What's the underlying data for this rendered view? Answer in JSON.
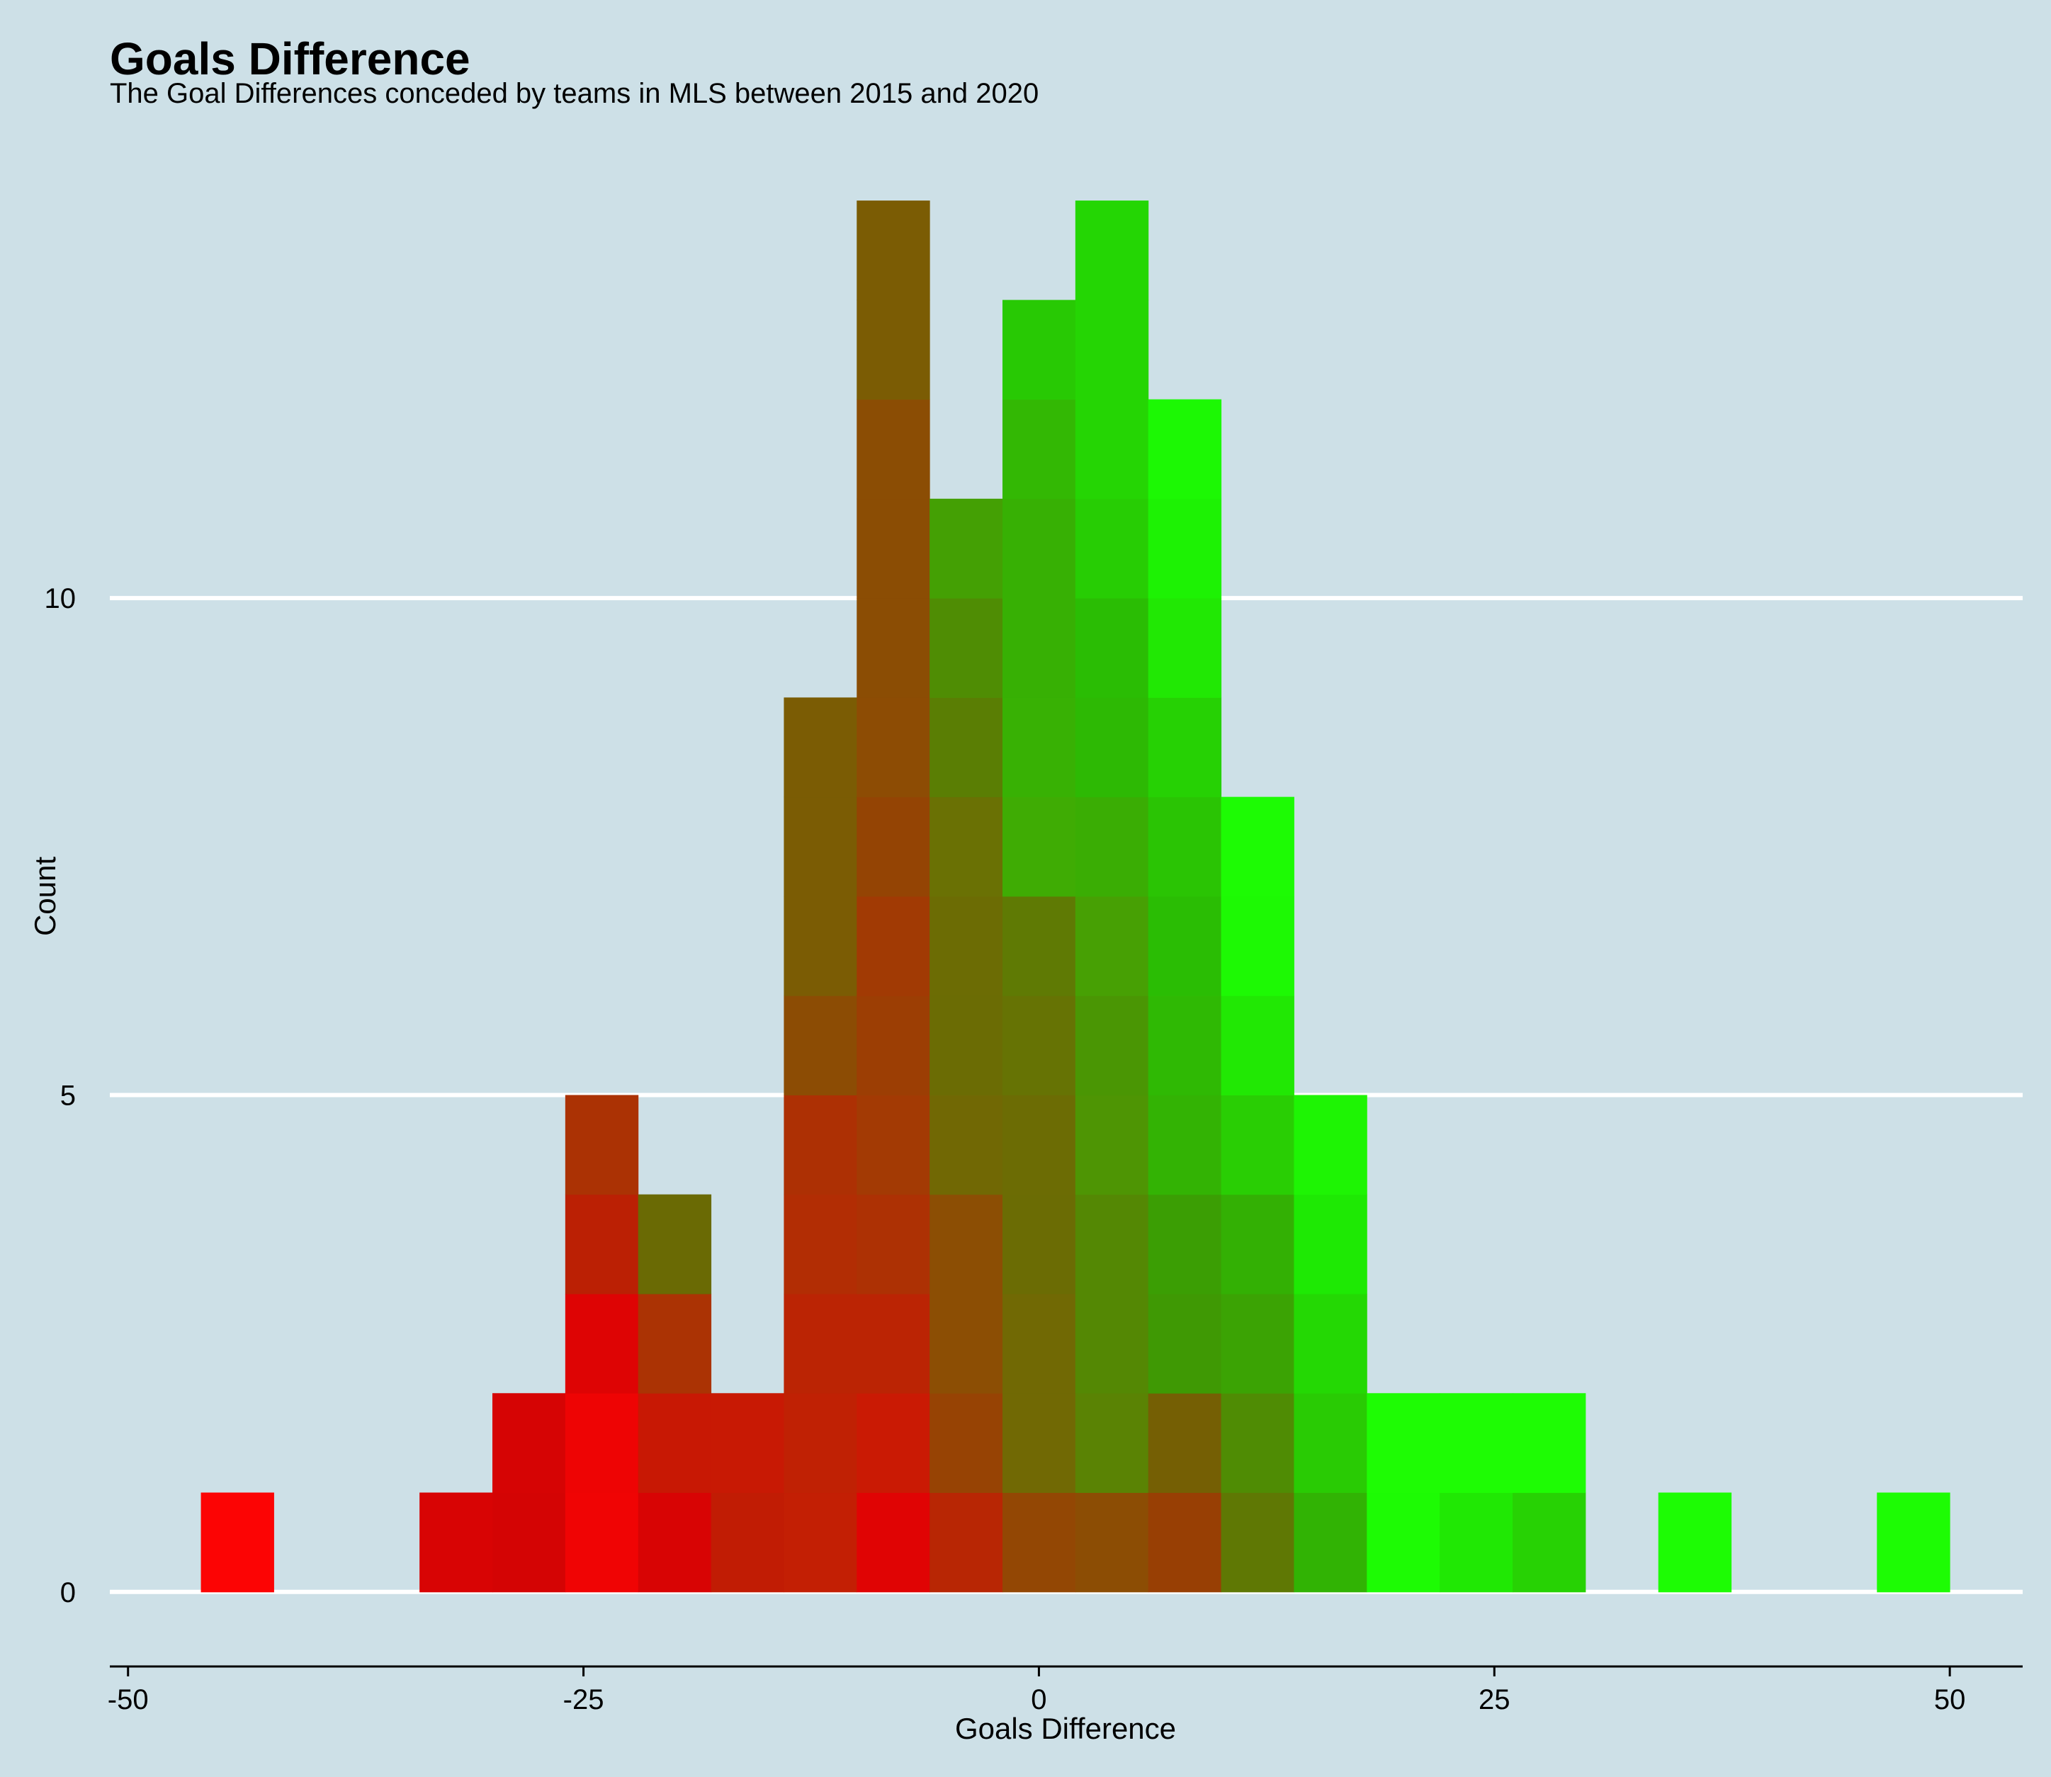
{
  "chart_data": {
    "type": "bar",
    "title": "Goals Difference",
    "subtitle": "The Goal Differences conceded by teams in MLS between 2015 and 2020",
    "xlabel": "Goals Difference",
    "ylabel": "Count",
    "xlim": [
      -51,
      54
    ],
    "ylim": [
      -0.7,
      14.2
    ],
    "x_ticks": [
      -50,
      -25,
      0,
      25,
      50
    ],
    "x_tick_labels": [
      "-50",
      "-25",
      "0",
      "25",
      "50"
    ],
    "y_ticks": [
      0,
      5,
      10
    ],
    "y_tick_labels": [
      "0",
      "5",
      "10"
    ],
    "grid": "horizontal",
    "legend": "none",
    "bin_width": 4,
    "stacked": true,
    "bins": [
      {
        "x0": -46,
        "x1": -42,
        "segments": [
          {
            "count": 1,
            "color": "#fc0404"
          }
        ]
      },
      {
        "x0": -34,
        "x1": -30,
        "segments": [
          {
            "count": 1,
            "color": "#d80404"
          }
        ]
      },
      {
        "x0": -30,
        "x1": -26,
        "segments": [
          {
            "count": 1,
            "color": "#d40404"
          },
          {
            "count": 1,
            "color": "#d60404"
          }
        ]
      },
      {
        "x0": -26,
        "x1": -22,
        "segments": [
          {
            "count": 1,
            "color": "#f00404"
          },
          {
            "count": 1,
            "color": "#ee0404"
          },
          {
            "count": 1,
            "color": "#de0404"
          },
          {
            "count": 1,
            "color": "#bb2004"
          },
          {
            "count": 1,
            "color": "#ab3204"
          }
        ]
      },
      {
        "x0": -22,
        "x1": -18,
        "segments": [
          {
            "count": 1,
            "color": "#d80404"
          },
          {
            "count": 1,
            "color": "#c81804"
          },
          {
            "count": 1,
            "color": "#ab3304"
          },
          {
            "count": 1,
            "color": "#6a6a04"
          }
        ]
      },
      {
        "x0": -18,
        "x1": -14,
        "segments": [
          {
            "count": 1,
            "color": "#c11c04"
          },
          {
            "count": 1,
            "color": "#c81904"
          }
        ]
      },
      {
        "x0": -14,
        "x1": -10,
        "segments": [
          {
            "count": 1,
            "color": "#c31f04"
          },
          {
            "count": 1,
            "color": "#c02104"
          },
          {
            "count": 1,
            "color": "#bb2404"
          },
          {
            "count": 1,
            "color": "#b22d04"
          },
          {
            "count": 1,
            "color": "#ad3004"
          },
          {
            "count": 1,
            "color": "#8c4c04"
          },
          {
            "count": 1,
            "color": "#7b5c04"
          },
          {
            "count": 1,
            "color": "#7b5c04"
          },
          {
            "count": 1,
            "color": "#7b5c04"
          }
        ]
      },
      {
        "x0": -10,
        "x1": -6,
        "segments": [
          {
            "count": 1,
            "color": "#e00404"
          },
          {
            "count": 1,
            "color": "#ca1a04"
          },
          {
            "count": 1,
            "color": "#bb2404"
          },
          {
            "count": 1,
            "color": "#ad3104"
          },
          {
            "count": 1,
            "color": "#a33a04"
          },
          {
            "count": 1,
            "color": "#9c3e04"
          },
          {
            "count": 1,
            "color": "#a13a04"
          },
          {
            "count": 1,
            "color": "#944404"
          },
          {
            "count": 1,
            "color": "#8d4c04"
          },
          {
            "count": 1,
            "color": "#8b4d04"
          },
          {
            "count": 1,
            "color": "#8b4d04"
          },
          {
            "count": 1,
            "color": "#8b4d04"
          },
          {
            "count": 1,
            "color": "#7b5c04"
          },
          {
            "count": 1,
            "color": "#7b5c04"
          }
        ]
      },
      {
        "x0": -6,
        "x1": -2,
        "segments": [
          {
            "count": 1,
            "color": "#b82604"
          },
          {
            "count": 1,
            "color": "#974304"
          },
          {
            "count": 1,
            "color": "#8c4e04"
          },
          {
            "count": 1,
            "color": "#8c4e04"
          },
          {
            "count": 1,
            "color": "#716804"
          },
          {
            "count": 1,
            "color": "#6b6c04"
          },
          {
            "count": 1,
            "color": "#6c6c04"
          },
          {
            "count": 1,
            "color": "#6a7104"
          },
          {
            "count": 1,
            "color": "#5a7e04"
          },
          {
            "count": 1,
            "color": "#4f8d04"
          },
          {
            "count": 1,
            "color": "#44a004"
          }
        ]
      },
      {
        "x0": -2,
        "x1": 2,
        "segments": [
          {
            "count": 1,
            "color": "#934704"
          },
          {
            "count": 1,
            "color": "#716904"
          },
          {
            "count": 1,
            "color": "#716904"
          },
          {
            "count": 1,
            "color": "#6b6c04"
          },
          {
            "count": 1,
            "color": "#6c6c04"
          },
          {
            "count": 1,
            "color": "#667304"
          },
          {
            "count": 1,
            "color": "#5f7a04"
          },
          {
            "count": 1,
            "color": "#3fac04"
          },
          {
            "count": 1,
            "color": "#38b104"
          },
          {
            "count": 1,
            "color": "#37b004"
          },
          {
            "count": 1,
            "color": "#37b004"
          },
          {
            "count": 1,
            "color": "#33b804"
          },
          {
            "count": 1,
            "color": "#28c904"
          }
        ]
      },
      {
        "x0": 2,
        "x1": 6,
        "segments": [
          {
            "count": 1,
            "color": "#8c4d04"
          },
          {
            "count": 1,
            "color": "#5a8304"
          },
          {
            "count": 1,
            "color": "#548804"
          },
          {
            "count": 1,
            "color": "#548804"
          },
          {
            "count": 1,
            "color": "#4e9504"
          },
          {
            "count": 1,
            "color": "#4a9604"
          },
          {
            "count": 1,
            "color": "#47a004"
          },
          {
            "count": 1,
            "color": "#3aad04"
          },
          {
            "count": 1,
            "color": "#2db904"
          },
          {
            "count": 1,
            "color": "#2abd04"
          },
          {
            "count": 1,
            "color": "#27cd04"
          },
          {
            "count": 1,
            "color": "#25d504"
          },
          {
            "count": 1,
            "color": "#25d504"
          },
          {
            "count": 1,
            "color": "#24d604"
          }
        ]
      },
      {
        "x0": 6,
        "x1": 10,
        "segments": [
          {
            "count": 1,
            "color": "#983f04"
          },
          {
            "count": 1,
            "color": "#755f04"
          },
          {
            "count": 1,
            "color": "#3f9904"
          },
          {
            "count": 1,
            "color": "#3b9e04"
          },
          {
            "count": 1,
            "color": "#33b304"
          },
          {
            "count": 1,
            "color": "#2fb904"
          },
          {
            "count": 1,
            "color": "#2abd04"
          },
          {
            "count": 1,
            "color": "#2ac404"
          },
          {
            "count": 1,
            "color": "#26d104"
          },
          {
            "count": 1,
            "color": "#21e804"
          },
          {
            "count": 1,
            "color": "#1df204"
          },
          {
            "count": 1,
            "color": "#1cf804"
          }
        ]
      },
      {
        "x0": 10,
        "x1": 14,
        "segments": [
          {
            "count": 1,
            "color": "#5f7804"
          },
          {
            "count": 1,
            "color": "#4f8c04"
          },
          {
            "count": 1,
            "color": "#3ba304"
          },
          {
            "count": 1,
            "color": "#33b004"
          },
          {
            "count": 1,
            "color": "#29ce04"
          },
          {
            "count": 1,
            "color": "#21e804"
          },
          {
            "count": 1,
            "color": "#1df904"
          },
          {
            "count": 1,
            "color": "#1dfb04"
          }
        ]
      },
      {
        "x0": 14,
        "x1": 18,
        "segments": [
          {
            "count": 1,
            "color": "#31b304"
          },
          {
            "count": 1,
            "color": "#29cb04"
          },
          {
            "count": 1,
            "color": "#24d804"
          },
          {
            "count": 1,
            "color": "#1ee904"
          },
          {
            "count": 1,
            "color": "#1ef404"
          }
        ]
      },
      {
        "x0": 18,
        "x1": 22,
        "segments": [
          {
            "count": 1,
            "color": "#1dfb04"
          },
          {
            "count": 1,
            "color": "#1efc04"
          }
        ]
      },
      {
        "x0": 22,
        "x1": 26,
        "segments": [
          {
            "count": 1,
            "color": "#20e804"
          },
          {
            "count": 1,
            "color": "#1efc04"
          }
        ]
      },
      {
        "x0": 26,
        "x1": 30,
        "segments": [
          {
            "count": 1,
            "color": "#27d204"
          },
          {
            "count": 1,
            "color": "#1efc04"
          }
        ]
      },
      {
        "x0": 34,
        "x1": 38,
        "segments": [
          {
            "count": 1,
            "color": "#1dfc04"
          }
        ]
      },
      {
        "x0": 46,
        "x1": 50,
        "segments": [
          {
            "count": 1,
            "color": "#1dfc04"
          }
        ]
      }
    ]
  },
  "colors": {
    "background": "#cde0e7",
    "gridline": "#ffffff",
    "axis_line": "#000000",
    "low_end": "#ff0000",
    "high_end": "#00ff00"
  }
}
